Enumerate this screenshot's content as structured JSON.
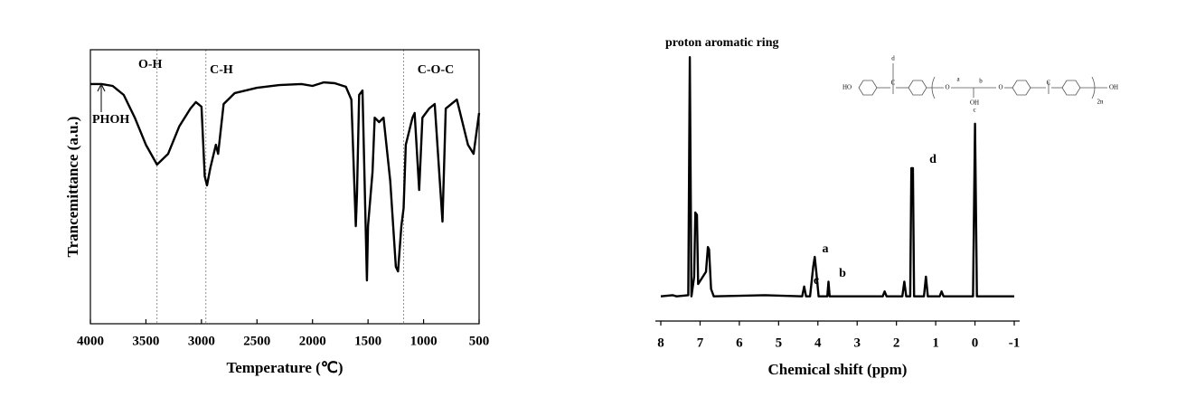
{
  "chart_data": [
    {
      "type": "line",
      "color": "#000000",
      "frame": "box",
      "reversed_x": true,
      "x_label": "Temperature (℃)",
      "y_label": "Trancemittance (a.u.)",
      "xlim": [
        4000,
        500
      ],
      "xticks": [
        4000,
        3500,
        3000,
        2500,
        2000,
        1500,
        1000,
        500
      ],
      "ylim": [
        0,
        100
      ],
      "reference_lines": [
        3400,
        2960,
        1180
      ],
      "annotations": [
        "O-H",
        "C-H",
        "C-O-C",
        "PHOH"
      ],
      "x": [
        4000,
        3900,
        3800,
        3700,
        3600,
        3500,
        3400,
        3300,
        3200,
        3100,
        3050,
        3000,
        2970,
        2950,
        2920,
        2870,
        2850,
        2800,
        2700,
        2500,
        2300,
        2100,
        2000,
        1900,
        1800,
        1700,
        1650,
        1610,
        1600,
        1580,
        1550,
        1510,
        1500,
        1460,
        1440,
        1400,
        1360,
        1300,
        1250,
        1230,
        1200,
        1180,
        1160,
        1100,
        1080,
        1040,
        1010,
        950,
        900,
        830,
        800,
        700,
        600,
        550,
        500
      ],
      "values": [
        87.5,
        87.5,
        86.8,
        83.5,
        75.2,
        65.3,
        58.1,
        62,
        72,
        78.5,
        80.9,
        79.2,
        53.8,
        50.5,
        56.9,
        65.3,
        62,
        80.2,
        84.2,
        86.1,
        87.1,
        87.5,
        86.8,
        88.1,
        87.8,
        86.5,
        81.8,
        35.6,
        47.2,
        83.5,
        85.1,
        15.8,
        35.6,
        55.4,
        75.2,
        73.6,
        75.2,
        52.1,
        20.8,
        19.1,
        35.6,
        42.2,
        65.3,
        75.2,
        76.9,
        48.8,
        75.2,
        78.5,
        80.2,
        37.3,
        78.5,
        81.8,
        65.3,
        62,
        76.9
      ]
    },
    {
      "type": "line",
      "color": "#000000",
      "frame": "bottom",
      "reversed_x": true,
      "x_label": "Chemical shift (ppm)",
      "xlim": [
        8,
        -1
      ],
      "xticks": [
        8,
        7,
        6,
        5,
        4,
        3,
        2,
        1,
        0,
        -1
      ],
      "ylim": [
        -10,
        100
      ],
      "annotations": [
        "proton aromatic ring",
        "a",
        "b",
        "c",
        "d"
      ],
      "structure_labels": [
        "HO",
        "C",
        "d",
        "O",
        "a",
        "b",
        "OH",
        "c",
        "O",
        "C",
        "2n",
        "OH"
      ],
      "x": [
        8,
        7.7,
        7.6,
        7.3,
        7.26,
        7.22,
        7.15,
        7.12,
        7.08,
        7.05,
        6.85,
        6.8,
        6.77,
        6.72,
        6.65,
        5.35,
        4.4,
        4.35,
        4.3,
        4.2,
        4.12,
        4.08,
        4.04,
        3.98,
        3.76,
        3.73,
        3.7,
        2.35,
        2.3,
        2.25,
        1.85,
        1.8,
        1.75,
        1.65,
        1.62,
        1.58,
        1.55,
        1.3,
        1.25,
        1.2,
        0.9,
        0.85,
        0.8,
        0.05,
        0,
        -0.05,
        -1
      ],
      "values": [
        0,
        0.5,
        0,
        0.5,
        97,
        0,
        8,
        34,
        33,
        5,
        10,
        20,
        19,
        3,
        0,
        0.5,
        0,
        4,
        0,
        0,
        12,
        16,
        10,
        0,
        0,
        6,
        0,
        0,
        2,
        0,
        0,
        6,
        0,
        0,
        52,
        52,
        0,
        0,
        8,
        0,
        0,
        2,
        0,
        0,
        70,
        0,
        0
      ]
    }
  ]
}
